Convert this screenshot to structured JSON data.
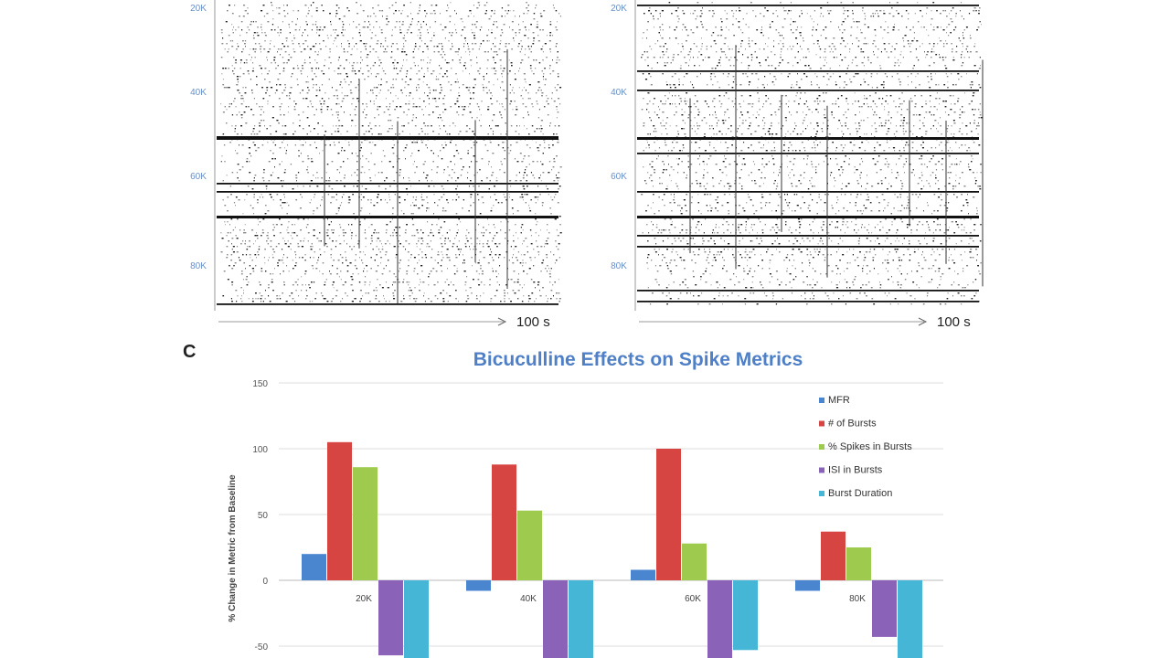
{
  "rasters": [
    {
      "row_labels": [
        "20K",
        "40K",
        "60K",
        "80K"
      ],
      "time_label": "100 s"
    },
    {
      "row_labels": [
        "20K",
        "40K",
        "60K",
        "80K"
      ],
      "time_label": "100 s"
    }
  ],
  "panel_label": "C",
  "chart_data": {
    "type": "bar",
    "title": "Bicuculline Effects on Spike Metrics",
    "ylabel": "% Change in Metric from Baseline",
    "xlabel": "",
    "categories": [
      "20K",
      "40K",
      "60K",
      "80K"
    ],
    "ylim": [
      -50,
      150
    ],
    "yticks": [
      150,
      100,
      50,
      0,
      -50
    ],
    "grid": true,
    "legend_position": "top-right",
    "series": [
      {
        "name": "MFR",
        "color": "#4a86d0",
        "values": [
          20,
          -8,
          8,
          -8
        ]
      },
      {
        "name": "# of Bursts",
        "color": "#d64541",
        "values": [
          105,
          88,
          100,
          37
        ]
      },
      {
        "name": "% Spikes in Bursts",
        "color": "#9ecb4e",
        "values": [
          86,
          53,
          28,
          25
        ]
      },
      {
        "name": "ISI in Bursts",
        "color": "#8a62b8",
        "values": [
          -57,
          -65,
          -65,
          -43
        ]
      },
      {
        "name": "Burst Duration",
        "color": "#45b6d6",
        "values": [
          -60,
          -62,
          -53,
          -60
        ]
      }
    ]
  }
}
